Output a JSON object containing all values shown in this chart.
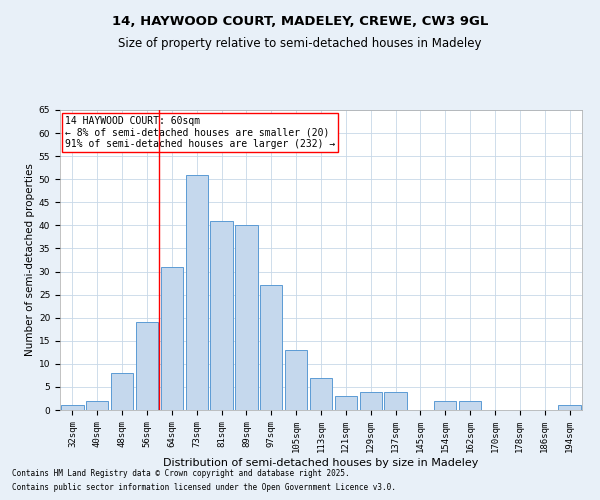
{
  "title1": "14, HAYWOOD COURT, MADELEY, CREWE, CW3 9GL",
  "title2": "Size of property relative to semi-detached houses in Madeley",
  "xlabel": "Distribution of semi-detached houses by size in Madeley",
  "ylabel": "Number of semi-detached properties",
  "categories": [
    "32sqm",
    "40sqm",
    "48sqm",
    "56sqm",
    "64sqm",
    "73sqm",
    "81sqm",
    "89sqm",
    "97sqm",
    "105sqm",
    "113sqm",
    "121sqm",
    "129sqm",
    "137sqm",
    "145sqm",
    "154sqm",
    "162sqm",
    "170sqm",
    "178sqm",
    "186sqm",
    "194sqm"
  ],
  "values": [
    1,
    2,
    8,
    19,
    31,
    51,
    41,
    40,
    27,
    13,
    7,
    3,
    4,
    4,
    0,
    2,
    2,
    0,
    0,
    0,
    1
  ],
  "bar_color": "#c5d8ed",
  "bar_edge_color": "#5b9bd5",
  "vline_x": 3.5,
  "vline_color": "red",
  "annotation_title": "14 HAYWOOD COURT: 60sqm",
  "annotation_line1": "← 8% of semi-detached houses are smaller (20)",
  "annotation_line2": "91% of semi-detached houses are larger (232) →",
  "ylim": [
    0,
    65
  ],
  "yticks": [
    0,
    5,
    10,
    15,
    20,
    25,
    30,
    35,
    40,
    45,
    50,
    55,
    60,
    65
  ],
  "footnote1": "Contains HM Land Registry data © Crown copyright and database right 2025.",
  "footnote2": "Contains public sector information licensed under the Open Government Licence v3.0.",
  "bg_color": "#e8f0f8",
  "plot_bg_color": "#ffffff",
  "grid_color": "#c8d8e8",
  "title_fontsize": 9.5,
  "subtitle_fontsize": 8.5,
  "tick_fontsize": 6.5,
  "ylabel_fontsize": 7.5,
  "xlabel_fontsize": 8,
  "annot_fontsize": 7,
  "footnote_fontsize": 5.5
}
